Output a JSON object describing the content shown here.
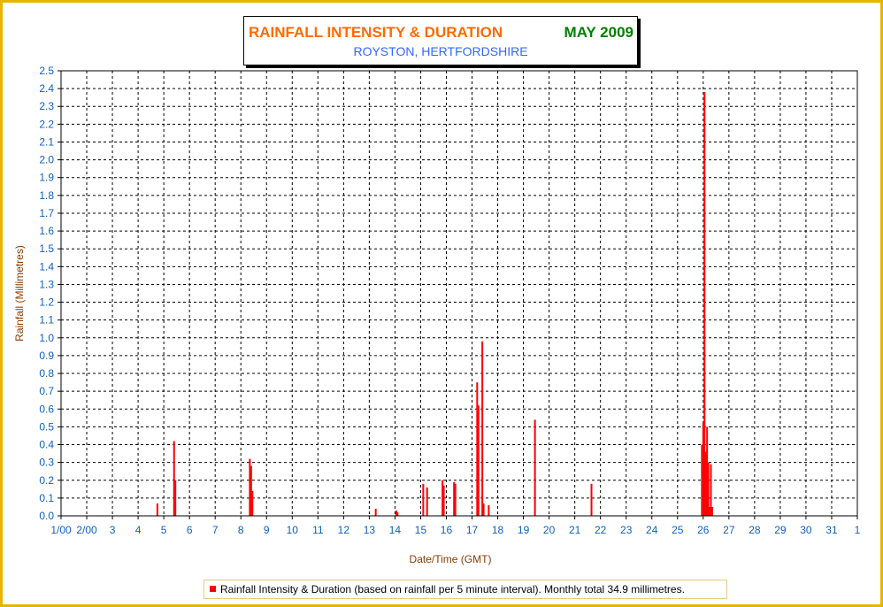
{
  "header": {
    "title": "RAINFALL INTENSITY & DURATION",
    "month": "MAY 2009",
    "subtitle": "ROYSTON, HERTFORDSHIRE"
  },
  "legend": {
    "text": "Rainfall Intensity & Duration (based on rainfall per 5 minute interval). Monthly total 34.9 millimetres."
  },
  "colors": {
    "frame": "#e8b400",
    "title": "#ff6a00",
    "month": "#008000",
    "subtitle": "#3366ff",
    "axis_text": "#1060c0",
    "axis_label": "#8b3a00",
    "series": "#ff0000"
  },
  "chart_data": {
    "type": "bar",
    "title": "RAINFALL INTENSITY & DURATION",
    "subtitle": "ROYSTON, HERTFORDSHIRE",
    "xlabel": "Date/Time (GMT)",
    "ylabel": "Rainfall (Millimetres)",
    "ylim": [
      0,
      2.5
    ],
    "xlim": [
      1,
      32
    ],
    "x_tick_labels": [
      "1/00",
      "2/00",
      "3",
      "4",
      "5",
      "6",
      "7",
      "8",
      "9",
      "10",
      "11",
      "12",
      "13",
      "14",
      "15",
      "16",
      "17",
      "18",
      "19",
      "20",
      "21",
      "22",
      "23",
      "24",
      "25",
      "26",
      "27",
      "28",
      "29",
      "30",
      "31",
      "1"
    ],
    "y_tick_labels": [
      "0.0",
      "0.1",
      "0.2",
      "0.3",
      "0.4",
      "0.5",
      "0.6",
      "0.7",
      "0.8",
      "0.9",
      "1.0",
      "1.1",
      "1.2",
      "1.3",
      "1.4",
      "1.5",
      "1.6",
      "1.7",
      "1.8",
      "1.9",
      "2.0",
      "2.1",
      "2.2",
      "2.3",
      "2.4",
      "2.5"
    ],
    "grid": true,
    "legend_position": "bottom",
    "series": [
      {
        "name": "Rainfall Intensity & Duration (based on rainfall per 5 minute interval). Monthly total 34.9 millimetres.",
        "x": [
          4.75,
          5.4,
          5.45,
          8.35,
          8.4,
          8.45,
          13.25,
          14.05,
          14.1,
          15.1,
          15.25,
          15.85,
          15.9,
          16.3,
          16.35,
          17.2,
          17.25,
          17.4,
          17.45,
          17.65,
          19.45,
          21.65,
          25.95,
          26.0,
          26.05,
          26.1,
          26.15,
          26.2,
          26.25,
          26.3,
          26.35
        ],
        "values": [
          0.07,
          0.42,
          0.2,
          0.32,
          0.28,
          0.14,
          0.04,
          0.03,
          0.02,
          0.18,
          0.16,
          0.2,
          0.17,
          0.19,
          0.18,
          0.75,
          0.62,
          0.98,
          0.07,
          0.06,
          0.54,
          0.18,
          0.4,
          0.52,
          2.38,
          0.36,
          0.5,
          0.3,
          0.05,
          0.29,
          0.05
        ]
      }
    ]
  }
}
